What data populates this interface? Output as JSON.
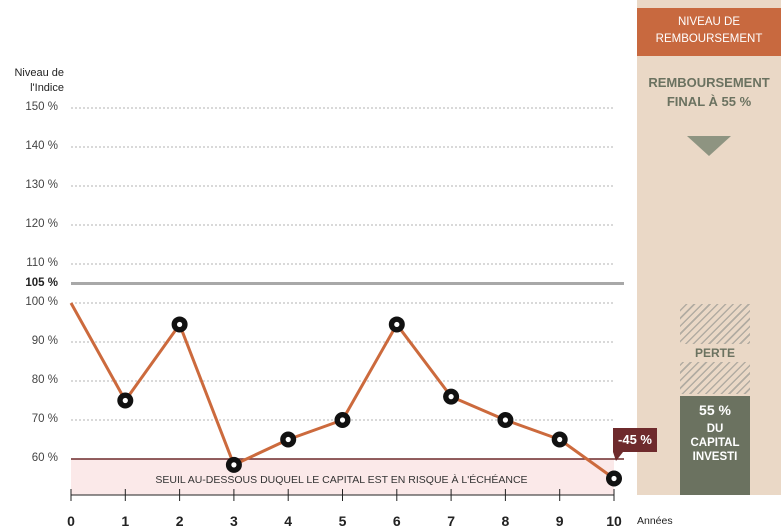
{
  "chart_data": {
    "type": "line",
    "title": "",
    "ylabel": "Niveau de l'Indice",
    "xlabel": "Années",
    "x": [
      0,
      1,
      2,
      3,
      4,
      5,
      6,
      7,
      8,
      9,
      10
    ],
    "x_tick_labels": [
      "0",
      "1",
      "2",
      "3",
      "4",
      "5",
      "6",
      "7",
      "8",
      "9",
      "10"
    ],
    "y_tick_labels": [
      "150 %",
      "140 %",
      "130 %",
      "120 %",
      "110 %",
      "100 %",
      "90 %",
      "80 %",
      "70 %",
      "60 %"
    ],
    "y_ticks": [
      150,
      140,
      130,
      120,
      110,
      100,
      90,
      80,
      70,
      60
    ],
    "ylim": [
      50,
      150
    ],
    "series": [
      {
        "values": [
          100,
          75,
          94.5,
          58.5,
          65,
          70,
          94.5,
          76,
          70,
          65,
          55
        ]
      }
    ],
    "reference_line": {
      "value": 105,
      "label": "105 %",
      "color": "#a8a8a8"
    },
    "barrier": {
      "value": 60,
      "label": "SEUIL AU-DESSOUS DUQUEL LE CAPITAL EST EN RISQUE À L'ÉCHÉANCE",
      "color": "#6e2a2c",
      "fill": "#fbe9e9"
    },
    "callout": {
      "label": "-45 %"
    },
    "line_color": "#cc6a3d",
    "grid": "dotted horizontal"
  },
  "panel": {
    "header": "NIVEAU DE REMBOURSEMENT",
    "title": "REMBOURSEMENT FINAL À 55 %",
    "loss_label": "PERTE",
    "remaining_pct": "55 %",
    "remaining_text": "DU CAPITAL INVESTI",
    "bg_color": "#ead8c6",
    "header_color": "#c8693f",
    "accent_color": "#6b7260"
  },
  "labels": {
    "yaxis_title": "Niveau de l'Indice",
    "xaxis_title": "Années"
  }
}
